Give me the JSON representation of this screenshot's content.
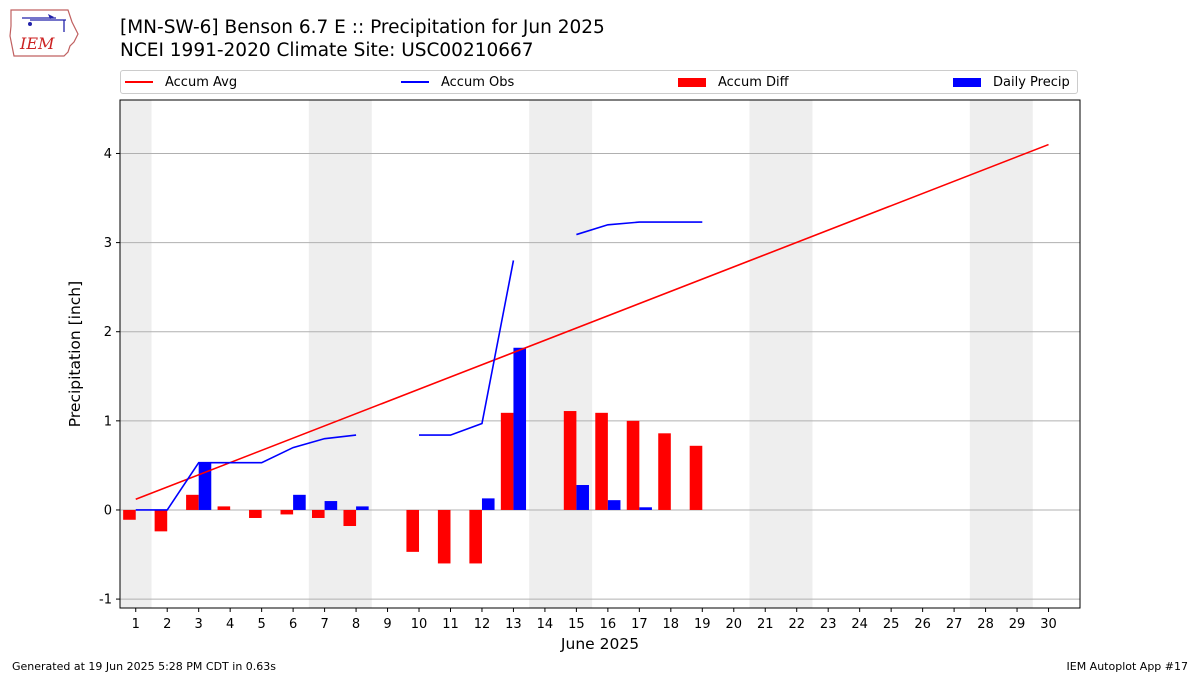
{
  "logo": {
    "text": "IEM"
  },
  "header": {
    "title": "[MN-SW-6] Benson 6.7 E :: Precipitation for Jun 2025",
    "subtitle": "NCEI 1991-2020 Climate Site: USC00210667"
  },
  "legend": [
    {
      "label": "Accum Avg",
      "kind": "line",
      "color": "#ff0000"
    },
    {
      "label": "Accum Obs",
      "kind": "line",
      "color": "#0000ff"
    },
    {
      "label": "Accum Diff",
      "kind": "box",
      "color": "#ff0000"
    },
    {
      "label": "Daily Precip",
      "kind": "box",
      "color": "#0000ff"
    }
  ],
  "footer": {
    "generated": "Generated at 19 Jun 2025 5:28 PM CDT in 0.63s",
    "app": "IEM Autoplot App #17"
  },
  "chart_data": {
    "type": "bar",
    "xlabel": "June 2025",
    "ylabel": "Precipitation [inch]",
    "xlim": [
      0.5,
      31
    ],
    "ylim": [
      -1.1,
      4.6
    ],
    "yticks": [
      -1,
      0,
      1,
      2,
      3,
      4
    ],
    "xticks": [
      "1",
      "2",
      "3",
      "4",
      "5",
      "6",
      "7",
      "8",
      "9",
      "10",
      "11",
      "12",
      "13",
      "14",
      "15",
      "16",
      "17",
      "18",
      "19",
      "20",
      "21",
      "22",
      "23",
      "24",
      "25",
      "26",
      "27",
      "28",
      "29",
      "30"
    ],
    "grid": "horizontal",
    "legend_position": "top",
    "weekend_shading": [
      [
        0.5,
        1.5
      ],
      [
        6.5,
        8.5
      ],
      [
        13.5,
        15.5
      ],
      [
        20.5,
        22.5
      ],
      [
        27.5,
        29.5
      ]
    ],
    "accum_avg": {
      "x": [
        1,
        30
      ],
      "y": [
        0.12,
        4.1
      ]
    },
    "accum_obs": {
      "segments": [
        {
          "x": [
            1,
            2,
            3,
            4,
            5,
            6,
            7,
            8
          ],
          "y": [
            0.0,
            0.0,
            0.53,
            0.53,
            0.53,
            0.7,
            0.8,
            0.84
          ]
        },
        {
          "x": [
            10,
            11,
            12,
            13
          ],
          "y": [
            0.84,
            0.84,
            0.97,
            2.8
          ]
        },
        {
          "x": [
            15,
            16,
            17,
            18,
            19
          ],
          "y": [
            3.09,
            3.2,
            3.23,
            3.23,
            3.23
          ]
        }
      ]
    },
    "accum_diff": {
      "x": [
        1,
        2,
        3,
        4,
        5,
        6,
        7,
        8,
        10,
        11,
        12,
        13,
        15,
        16,
        17,
        18,
        19
      ],
      "y": [
        -0.11,
        -0.24,
        0.17,
        0.04,
        -0.09,
        -0.05,
        -0.09,
        -0.18,
        -0.47,
        -0.6,
        -0.6,
        1.09,
        1.11,
        1.09,
        1.0,
        0.86,
        0.72
      ]
    },
    "daily_precip": {
      "x": [
        3,
        6,
        7,
        8,
        12,
        13,
        15,
        16,
        17
      ],
      "y": [
        0.53,
        0.17,
        0.1,
        0.04,
        0.13,
        1.82,
        0.28,
        0.11,
        0.03
      ]
    }
  }
}
